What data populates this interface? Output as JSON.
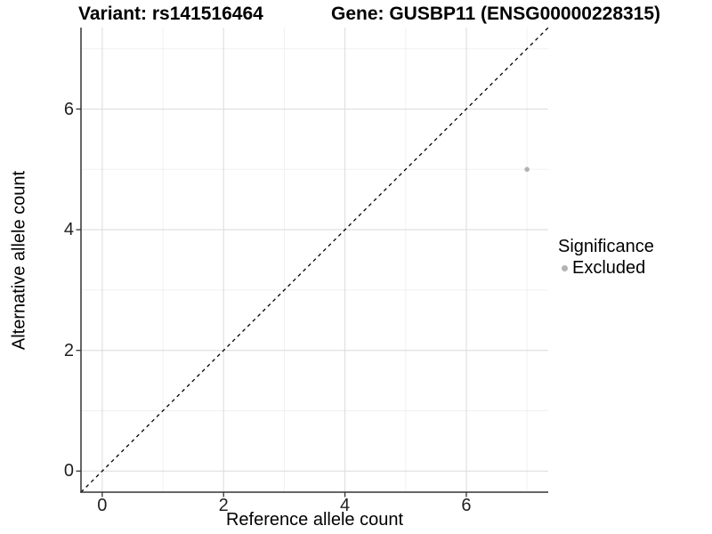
{
  "titles": {
    "variant": "Variant: rs141516464",
    "gene": "Gene: GUSBP11 (ENSG00000228315)"
  },
  "axes": {
    "x_label": "Reference allele count",
    "y_label": "Alternative allele count"
  },
  "legend": {
    "title": "Significance",
    "entries": [
      {
        "label": "Excluded",
        "color": "#b3b3b3"
      }
    ]
  },
  "chart_data": {
    "type": "scatter",
    "title": "Variant: rs141516464 — Gene: GUSBP11 (ENSG00000228315)",
    "xlabel": "Reference allele count",
    "ylabel": "Alternative allele count",
    "xlim": [
      -0.35,
      7.35
    ],
    "ylim": [
      -0.35,
      7.35
    ],
    "x_major_ticks": [
      0,
      2,
      4,
      6
    ],
    "x_minor_ticks": [
      1,
      3,
      5,
      7
    ],
    "y_major_ticks": [
      0,
      2,
      4,
      6
    ],
    "y_minor_ticks": [
      1,
      3,
      5,
      7
    ],
    "grid": "major+minor",
    "legend_position": "right",
    "legend_title": "Significance",
    "reference_line": {
      "kind": "identity y=x",
      "style": "dashed",
      "color": "#000000"
    },
    "series": [
      {
        "name": "Excluded",
        "color": "#b3b3b3",
        "points": [
          {
            "x": 7,
            "y": 5
          }
        ]
      }
    ]
  },
  "style_colors": {
    "point_excluded": "#b3b3b3",
    "grid_major": "#dedede",
    "grid_minor": "#f0f0f0",
    "axis_line": "#333333"
  }
}
